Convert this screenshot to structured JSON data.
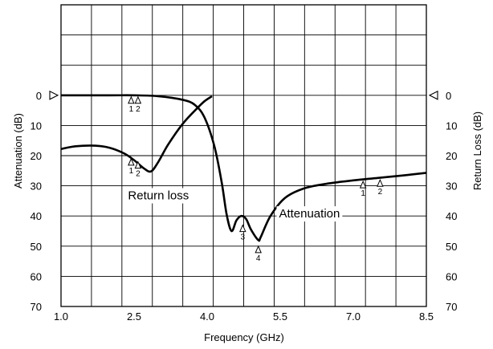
{
  "chart_data": {
    "type": "line",
    "xlabel": "Frequency (GHz)",
    "ylabel_left": "Attenuation (dB)",
    "ylabel_right": "Return Loss (dB)",
    "xlim": [
      1.0,
      8.5
    ],
    "ylim": [
      -30,
      70
    ],
    "y_inverted": true,
    "grid": true,
    "x_ticks": [
      1.0,
      2.5,
      4.0,
      5.5,
      7.0,
      8.5
    ],
    "x_tick_labels": [
      "1.0",
      "2.5",
      "4.0",
      "5.5",
      "7.0",
      "8.5"
    ],
    "y_ticks": [
      0,
      10,
      20,
      30,
      40,
      50,
      60,
      70
    ],
    "y_tick_labels": [
      "0",
      "10",
      "20",
      "30",
      "40",
      "50",
      "60",
      "70"
    ],
    "reference_marks": [
      "left-triangle-at-0",
      "right-triangle-at-0"
    ],
    "annotations": [
      {
        "text": "Return loss",
        "x": 3.0,
        "y": 34.5
      },
      {
        "text": "Attenuation",
        "x": 6.1,
        "y": 40.5
      }
    ],
    "series": [
      {
        "name": "Return loss",
        "x": [
          1.0,
          1.3,
          1.7,
          2.0,
          2.3,
          2.5,
          2.7,
          2.85,
          3.0,
          3.2,
          3.5,
          3.8,
          3.95,
          4.1
        ],
        "y": [
          17.8,
          16.9,
          16.7,
          17.4,
          19.3,
          21.5,
          24.2,
          25.2,
          22.0,
          16.3,
          9.4,
          4.2,
          1.9,
          0.3
        ]
      },
      {
        "name": "Attenuation",
        "x": [
          1.0,
          2.0,
          2.5,
          3.0,
          3.5,
          3.75,
          3.95,
          4.15,
          4.3,
          4.4,
          4.5,
          4.6,
          4.7,
          4.8,
          4.9,
          5.05,
          5.1,
          5.3,
          5.6,
          6.0,
          6.5,
          7.0,
          7.5,
          8.0,
          8.5
        ],
        "y": [
          0,
          0,
          0,
          0.3,
          1.5,
          3.2,
          7.5,
          17.0,
          29.0,
          39.5,
          45.0,
          41.5,
          40.0,
          41.0,
          44.5,
          48.0,
          47.0,
          40.0,
          34.0,
          30.8,
          29.2,
          28.2,
          27.4,
          26.6,
          25.7
        ]
      }
    ],
    "markers": [
      {
        "label": "1",
        "x": 2.44,
        "y": 0,
        "series": "Attenuation"
      },
      {
        "label": "2",
        "x": 2.58,
        "y": 0,
        "series": "Attenuation"
      },
      {
        "label": "1",
        "x": 2.44,
        "y": 20.5,
        "series": "Return loss"
      },
      {
        "label": "2",
        "x": 2.58,
        "y": 21.5,
        "series": "Return loss"
      },
      {
        "label": "1",
        "x": 7.2,
        "y": 28.0,
        "series": "Return loss"
      },
      {
        "label": "2",
        "x": 7.55,
        "y": 27.5,
        "series": "Return loss"
      },
      {
        "label": "3",
        "x": 4.73,
        "y": 42.5,
        "series": "Attenuation"
      },
      {
        "label": "4",
        "x": 5.05,
        "y": 49.5,
        "series": "Attenuation"
      }
    ]
  }
}
